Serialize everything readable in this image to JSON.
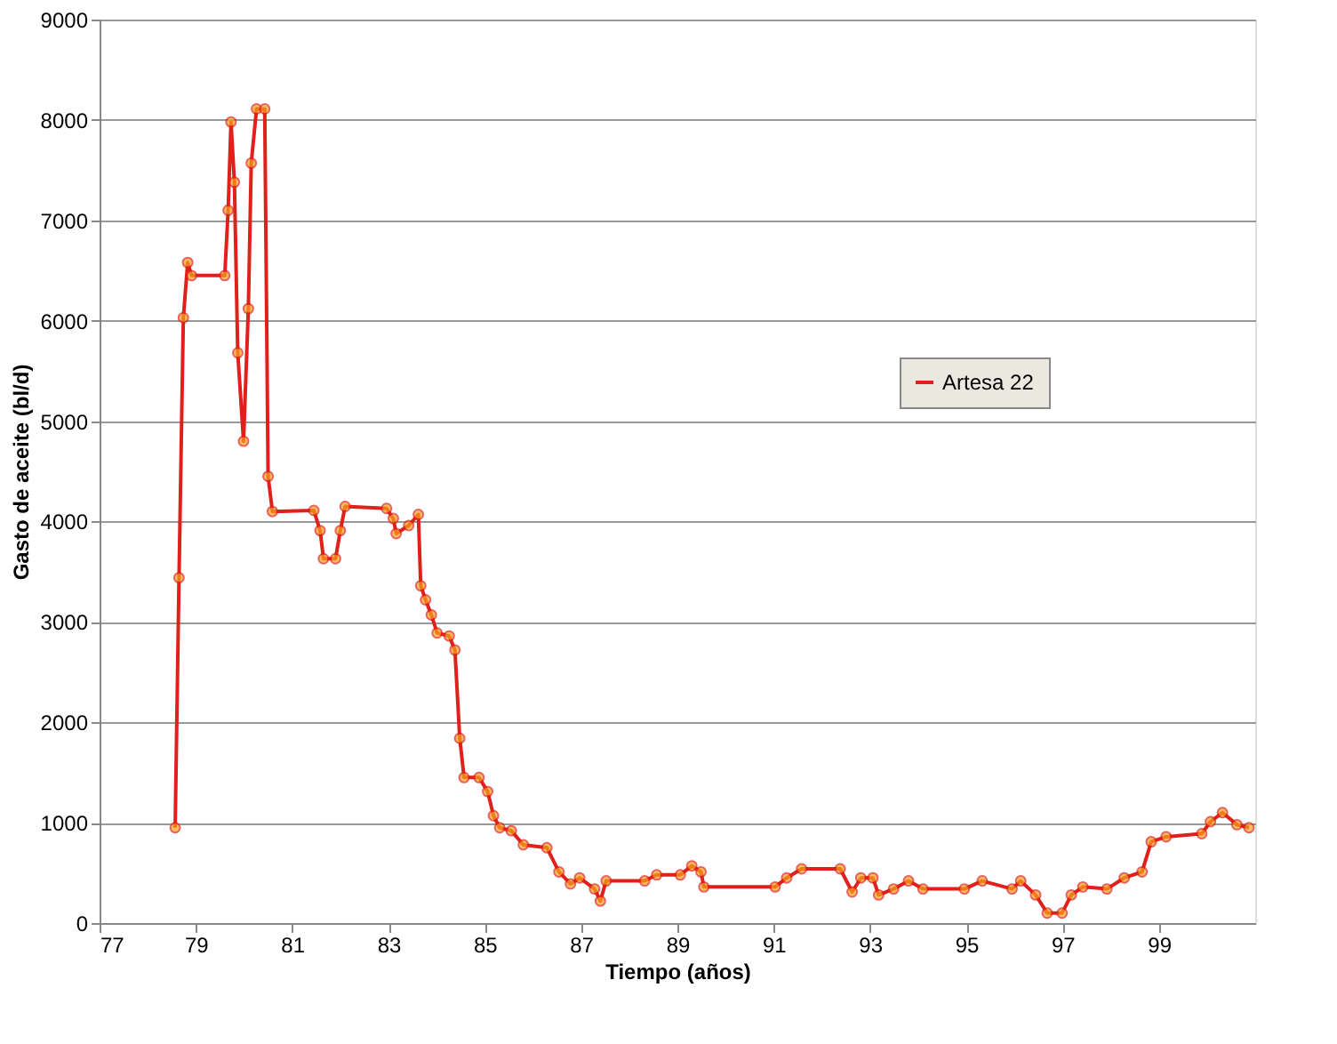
{
  "chart_data": {
    "type": "line",
    "xlabel": "Tiempo (años)",
    "ylabel": "Gasto de aceite (bl/d)",
    "xlim": [
      77,
      101
    ],
    "xticks": [
      77,
      79,
      81,
      83,
      85,
      87,
      89,
      91,
      93,
      95,
      97,
      99
    ],
    "ylim": [
      0,
      9000
    ],
    "yticks": [
      0,
      1000,
      2000,
      3000,
      4000,
      5000,
      6000,
      7000,
      8000,
      9000
    ],
    "grid": "y",
    "legend": "right",
    "marker": "circle",
    "line_style": "solid",
    "x": [
      78.57,
      78.65,
      78.74,
      78.83,
      78.91,
      79.6,
      79.67,
      79.73,
      79.8,
      79.87,
      79.99,
      80.09,
      80.15,
      80.26,
      80.43,
      80.5,
      80.59,
      81.45,
      81.58,
      81.65,
      81.9,
      82.0,
      82.1,
      82.96,
      83.1,
      83.16,
      83.42,
      83.62,
      83.67,
      83.77,
      83.89,
      84.01,
      84.26,
      84.38,
      84.48,
      84.57,
      84.88,
      85.06,
      85.18,
      85.31,
      85.55,
      85.8,
      86.29,
      86.54,
      86.78,
      86.97,
      87.28,
      87.4,
      87.52,
      88.32,
      88.57,
      89.06,
      89.3,
      89.49,
      89.55,
      91.03,
      91.27,
      91.58,
      92.38,
      92.63,
      92.81,
      93.06,
      93.18,
      93.49,
      93.8,
      94.1,
      94.96,
      95.33,
      95.95,
      96.13,
      96.44,
      96.68,
      96.99,
      97.18,
      97.42,
      97.92,
      98.28,
      98.65,
      98.84,
      99.15,
      99.89,
      100.07,
      100.32,
      100.62,
      100.87
    ],
    "series": [
      {
        "name": "Artesa 22",
        "color": "#e0201b",
        "values": [
          950,
          3440,
          6030,
          6580,
          6450,
          6450,
          7100,
          7980,
          7380,
          5680,
          4800,
          6120,
          7570,
          8110,
          8110,
          4450,
          4100,
          4110,
          3910,
          3630,
          3630,
          3910,
          4150,
          4130,
          4030,
          3880,
          3960,
          4070,
          3360,
          3220,
          3070,
          2890,
          2860,
          2720,
          1840,
          1450,
          1450,
          1310,
          1070,
          950,
          920,
          780,
          750,
          510,
          390,
          450,
          340,
          220,
          420,
          420,
          480,
          480,
          570,
          510,
          360,
          360,
          450,
          540,
          540,
          310,
          450,
          450,
          280,
          340,
          420,
          340,
          340,
          420,
          340,
          420,
          280,
          100,
          100,
          280,
          360,
          340,
          450,
          510,
          810,
          860,
          890,
          1010,
          1100,
          980,
          950
        ]
      }
    ]
  }
}
